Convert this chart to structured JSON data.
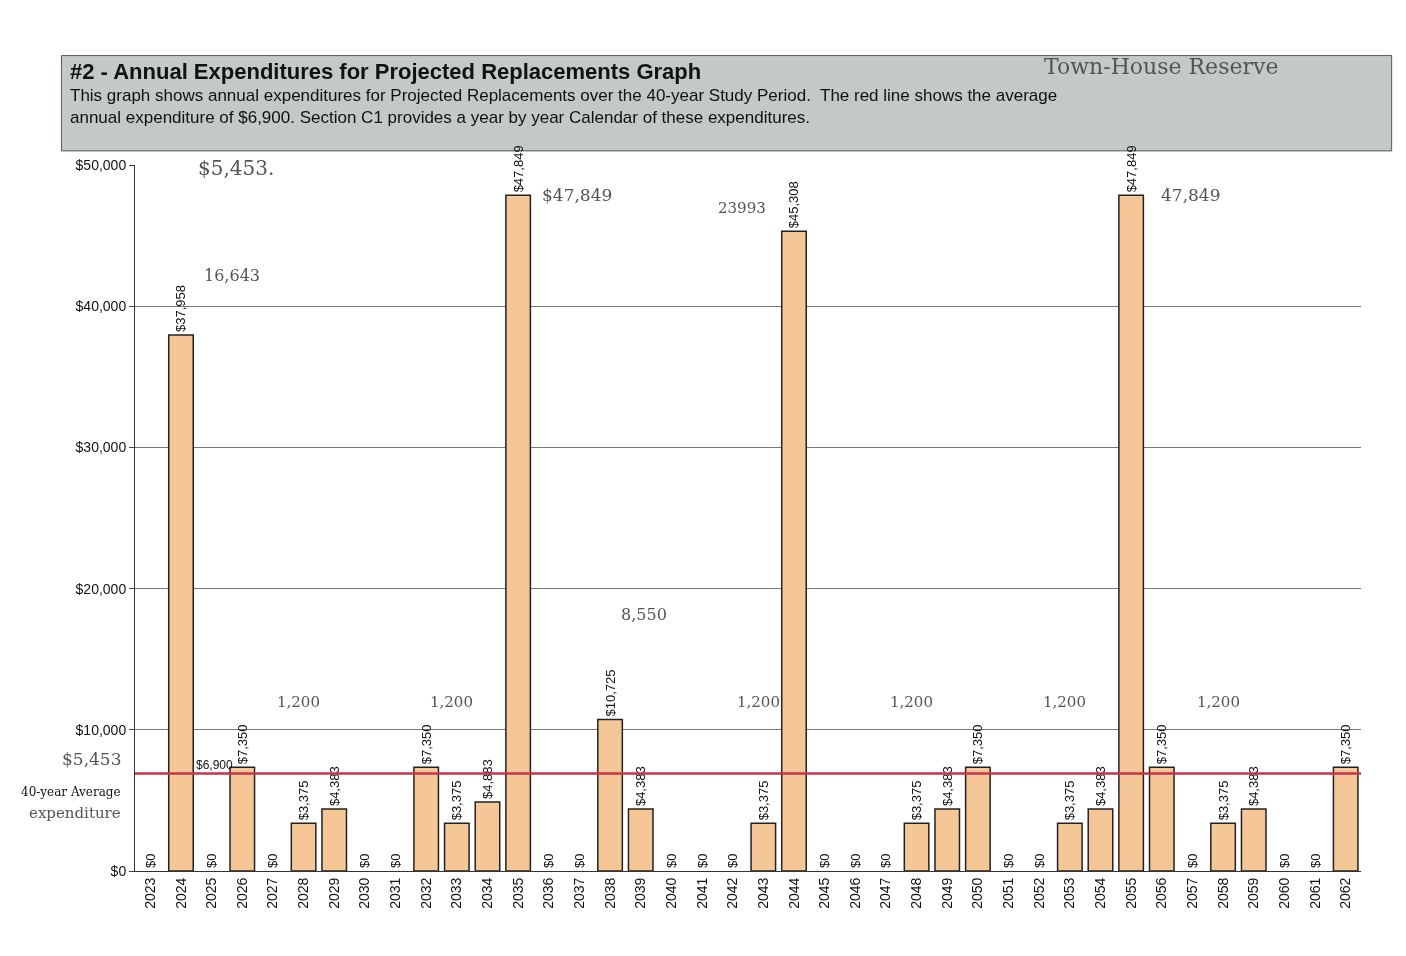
{
  "chart_data": {
    "type": "bar",
    "title": "#2 - Annual Expenditures for Projected Replacements Graph",
    "subtitle": "This graph shows annual expenditures for Projected Replacements over the 40-year Study Period.  The red line shows the average annual expenditure of $6,900. Section C1 provides a year by year Calendar of these expenditures.",
    "categories": [
      "2023",
      "2024",
      "2025",
      "2026",
      "2027",
      "2028",
      "2029",
      "2030",
      "2031",
      "2032",
      "2033",
      "2034",
      "2035",
      "2036",
      "2037",
      "2038",
      "2039",
      "2040",
      "2041",
      "2042",
      "2043",
      "2044",
      "2045",
      "2046",
      "2047",
      "2048",
      "2049",
      "2050",
      "2051",
      "2052",
      "2053",
      "2054",
      "2055",
      "2056",
      "2057",
      "2058",
      "2059",
      "2060",
      "2061",
      "2062"
    ],
    "values": [
      0,
      37958,
      0,
      7350,
      0,
      3375,
      4383,
      0,
      0,
      7350,
      3375,
      4883,
      47849,
      0,
      0,
      10725,
      4383,
      0,
      0,
      0,
      3375,
      45308,
      0,
      0,
      0,
      3375,
      4383,
      7350,
      0,
      0,
      3375,
      4383,
      47849,
      7350,
      0,
      3375,
      4383,
      0,
      0,
      7350
    ],
    "value_labels": [
      "$0",
      "$37,958",
      "$0",
      "$7,350",
      "$0",
      "$3,375",
      "$4,383",
      "$0",
      "$0",
      "$7,350",
      "$3,375",
      "$4,883",
      "$47,849",
      "$0",
      "$0",
      "$10,725",
      "$4,383",
      "$0",
      "$0",
      "$0",
      "$3,375",
      "$45,308",
      "$0",
      "$0",
      "$0",
      "$3,375",
      "$4,383",
      "$7,350",
      "$0",
      "$0",
      "$3,375",
      "$4,383",
      "$47,849",
      "$7,350",
      "$0",
      "$3,375",
      "$4,383",
      "$0",
      "$0",
      "$7,350"
    ],
    "color": "#f6c796",
    "ylim": [
      0,
      50000
    ],
    "yticks": [
      {
        "value": 0,
        "label": "$0"
      },
      {
        "value": 10000,
        "label": "$10,000"
      },
      {
        "value": 20000,
        "label": "$20,000"
      },
      {
        "value": 30000,
        "label": "$30,000"
      },
      {
        "value": 40000,
        "label": "$40,000"
      },
      {
        "value": 50000,
        "label": "$50,000"
      }
    ],
    "grid": "y",
    "ref_lines": [
      {
        "axis": "y",
        "value": 6900,
        "label": "$6,900",
        "color": "#c8324a"
      }
    ],
    "annotations": [
      "Town-House Reserve",
      "$5,453.",
      "40-year Average",
      "expenditure",
      "$5,453",
      "16,643",
      "$47,849",
      "8,550",
      "23993",
      "47,849",
      "1,200",
      "1,200",
      "1,200",
      "1,200",
      "1,200",
      "1,200"
    ]
  }
}
